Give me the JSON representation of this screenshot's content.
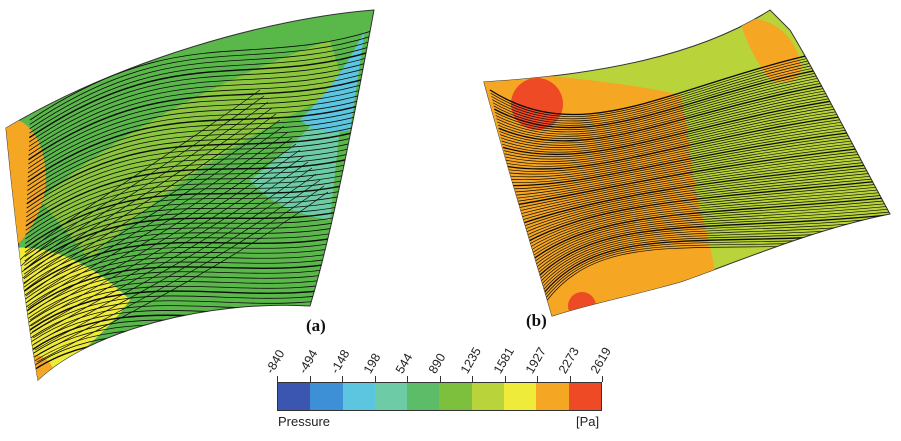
{
  "panels": {
    "a": {
      "label": "(a)"
    },
    "b": {
      "label": "(b)"
    }
  },
  "colorbar": {
    "title": "Pressure",
    "unit": "[Pa]",
    "ticks": [
      "-840",
      "-494",
      "-148",
      "198",
      "544",
      "890",
      "1235",
      "1581",
      "1927",
      "2273",
      "2619"
    ],
    "colors": [
      "#3a56b0",
      "#3d8fd6",
      "#5cc6e0",
      "#6dcba6",
      "#5cbc68",
      "#7cc03e",
      "#b9d43a",
      "#eeeb3a",
      "#f5a623",
      "#ee4a25"
    ]
  },
  "field_colors": {
    "a_main": "#5ab84a",
    "a_blade_side": "#eeeb3a",
    "a_light": "#8cc63f",
    "a_teal": "#6dcba6",
    "a_cyan": "#5cc6e0",
    "a_orange": "#f5a623",
    "b_main": "#b9d43a",
    "b_orange": "#f5a623",
    "b_red": "#ee4a25",
    "streamline": "#0a0a0a"
  }
}
